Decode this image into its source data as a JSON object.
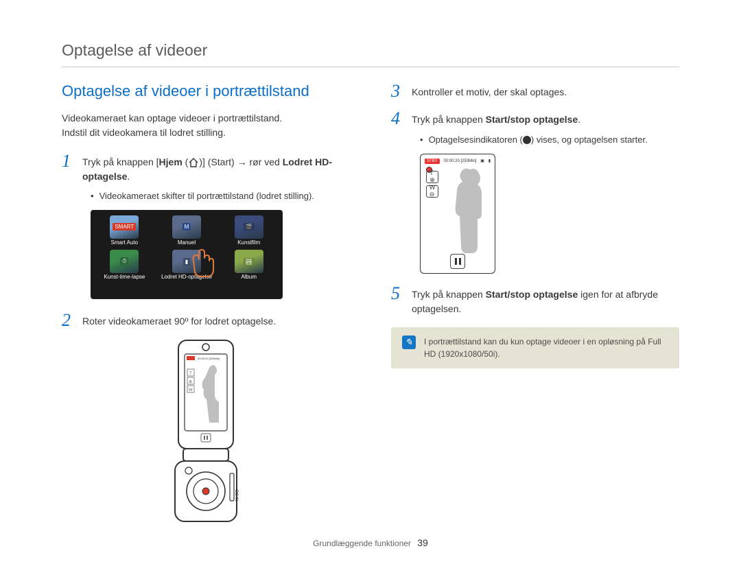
{
  "header": {
    "title": "Optagelse af videoer"
  },
  "section": {
    "heading": "Optagelse af videoer i portrættilstand"
  },
  "intro": {
    "line1": "Videokameraet kan optage videoer i portrættilstand.",
    "line2": "Indstil dit videokamera til lodret stilling."
  },
  "steps": {
    "s1": {
      "num": "1",
      "pre": "Tryk på knappen [",
      "hjem": "Hjem",
      "mid1": " (",
      "mid2": ")] (Start) → rør ved ",
      "lodret": "Lodret HD-optagelse",
      "post": ".",
      "bullet": "Videokameraet skifter til portrættilstand (lodret stilling)."
    },
    "s2": {
      "num": "2",
      "text": "Roter videokameraet 90º for lodret optagelse."
    },
    "s3": {
      "num": "3",
      "text": "Kontroller et motiv, der skal optages."
    },
    "s4": {
      "num": "4",
      "pre": "Tryk på knappen ",
      "btn": "Start/stop optagelse",
      "post": ".",
      "bullet_pre": "Optagelsesindikatoren (",
      "bullet_post": ") vises, og optagelsen starter."
    },
    "s5": {
      "num": "5",
      "pre": "Tryk på knappen ",
      "btn": "Start/stop optagelse",
      "post": " igen for at afbryde optagelsen."
    }
  },
  "icon_panel": {
    "items": [
      {
        "label": "Smart Auto",
        "bg": "#7aa8d8",
        "badge": "SMART",
        "badge_bg": "#d83a2a"
      },
      {
        "label": "Manuel",
        "bg": "#5a6a8a",
        "badge": "M",
        "badge_bg": "#2a4a8a"
      },
      {
        "label": "Kunstfilm",
        "bg": "#3a4a7a",
        "badge": "🎬",
        "badge_bg": "#2a3a5a"
      },
      {
        "label": "Kunst-time-lapse",
        "bg": "#3a8a4a",
        "badge": "⏱",
        "badge_bg": "#2a6a3a"
      },
      {
        "label": "Lodret HD-optagelse",
        "bg": "#5a6a8a",
        "badge": "▮",
        "badge_bg": "#3a4a6a",
        "touched": true
      },
      {
        "label": "Album",
        "bg": "#8aaa4a",
        "badge": "🏞",
        "badge_bg": "#6a8a3a"
      }
    ]
  },
  "portrait_screen": {
    "timer": "00:00:20 [253Min]",
    "stby": "STBY",
    "hd": "HD",
    "batt": "FULL"
  },
  "note": {
    "icon": "i",
    "text": "I portrættilstand kan du kun optage videoer i en opløsning på Full HD (1920x1080/50i)."
  },
  "footer": {
    "section": "Grundlæggende funktioner",
    "page": "39"
  },
  "colors": {
    "heading": "#0b6fc7",
    "stepnum": "#0b6fc7",
    "notebg": "#e5e3d3",
    "noteicon": "#1576c6",
    "hand": "#e07a3a"
  }
}
